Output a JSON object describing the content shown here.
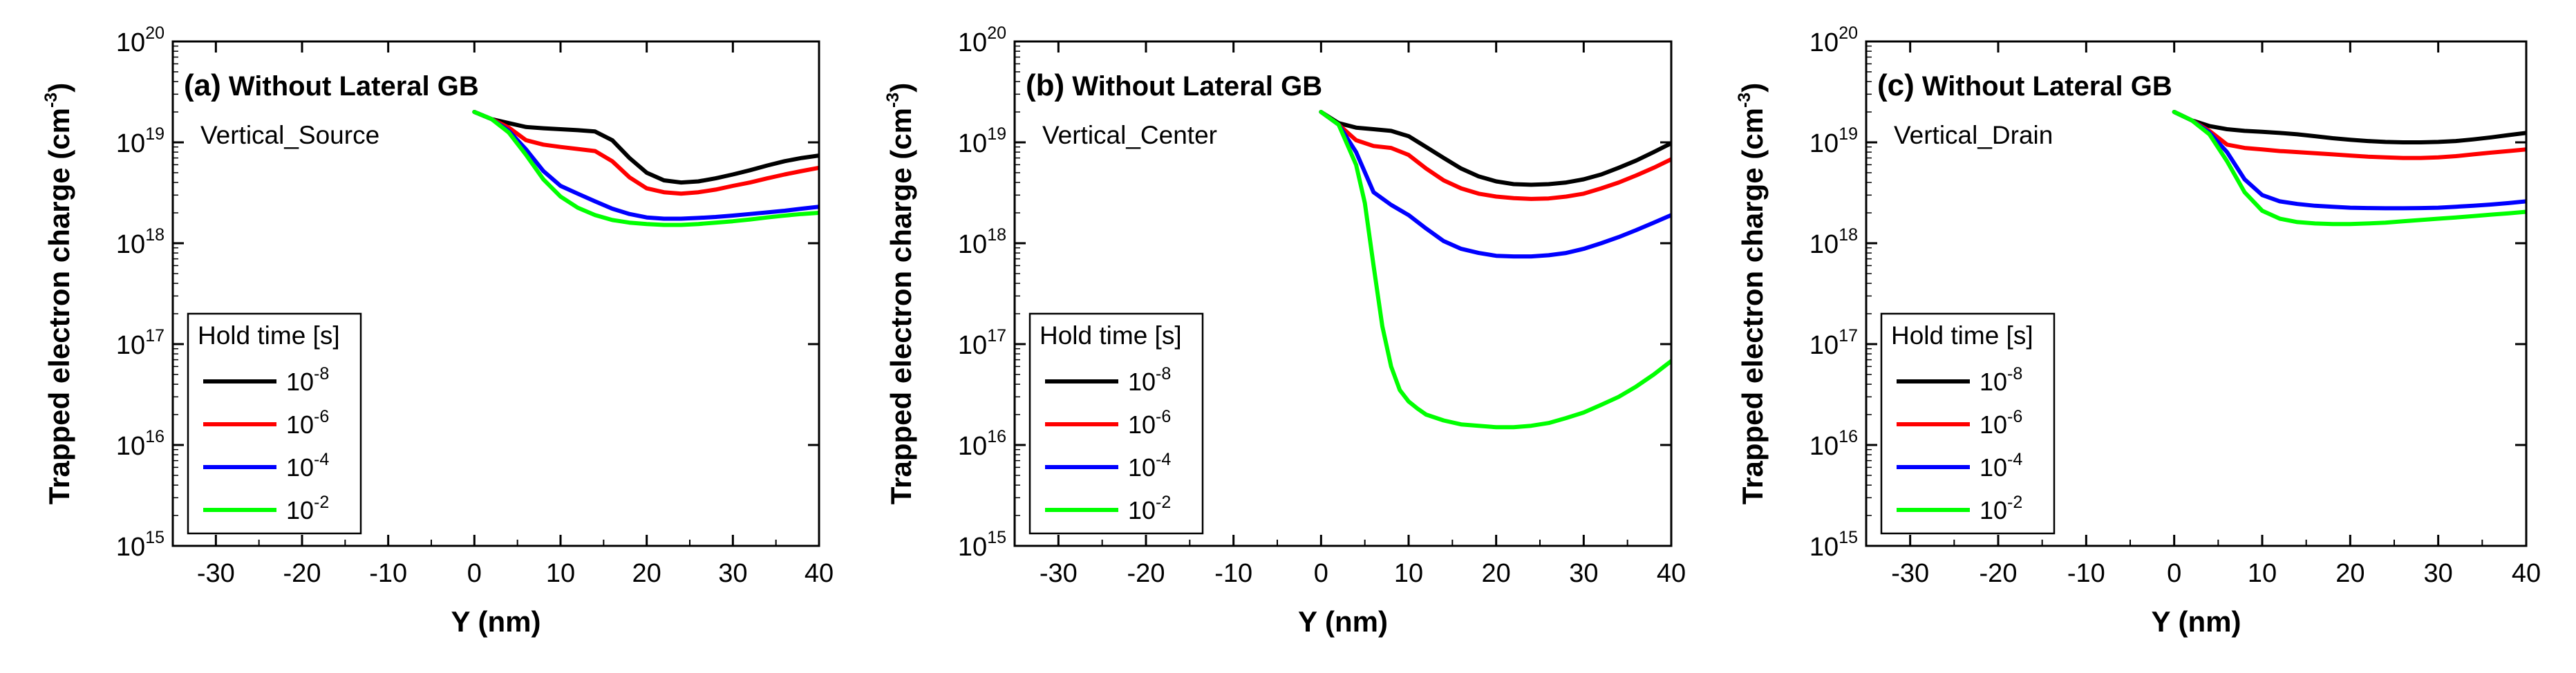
{
  "chart_data": [
    {
      "type": "line",
      "panel_label": "(a)",
      "title": "Without Lateral GB",
      "subtitle": "Vertical_Source",
      "xlabel": "Y (nm)",
      "ylabel_main": "Trapped electron charge (cm",
      "ylabel_exp": "-3",
      "ylabel_close": ")",
      "xlim": [
        -35,
        40
      ],
      "ylim_log10": [
        15,
        20
      ],
      "y_scale": "log",
      "x_ticks": [
        -30,
        -20,
        -10,
        0,
        10,
        20,
        30,
        40
      ],
      "y_ticks": [
        {
          "base": "10",
          "exp": "15"
        },
        {
          "base": "10",
          "exp": "16"
        },
        {
          "base": "10",
          "exp": "17"
        },
        {
          "base": "10",
          "exp": "18"
        },
        {
          "base": "10",
          "exp": "19"
        },
        {
          "base": "10",
          "exp": "20"
        }
      ],
      "legend": {
        "title": "Hold time [s]",
        "placement": "lower-left"
      },
      "series": [
        {
          "name_base": "10",
          "name_exp": "-8",
          "color": "#000000",
          "x": [
            0,
            2,
            4,
            6,
            8,
            10,
            12,
            14,
            16,
            18,
            20,
            22,
            24,
            26,
            28,
            30,
            32,
            34,
            36,
            38,
            40
          ],
          "y": [
            2e+19,
            1.7e+19,
            1.55e+19,
            1.42e+19,
            1.38e+19,
            1.35e+19,
            1.32e+19,
            1.28e+19,
            1.05e+19,
            7e+18,
            5e+18,
            4.2e+18,
            4e+18,
            4.1e+18,
            4.4e+18,
            4.8e+18,
            5.3e+18,
            5.9e+18,
            6.5e+18,
            7e+18,
            7.4e+18
          ]
        },
        {
          "name_base": "10",
          "name_exp": "-6",
          "color": "#ff0000",
          "x": [
            0,
            2,
            4,
            6,
            8,
            10,
            12,
            14,
            16,
            18,
            20,
            22,
            24,
            26,
            28,
            30,
            32,
            34,
            36,
            38,
            40
          ],
          "y": [
            2e+19,
            1.7e+19,
            1.4e+19,
            1.05e+19,
            9.5e+18,
            9e+18,
            8.6e+18,
            8.2e+18,
            6.5e+18,
            4.5e+18,
            3.5e+18,
            3.2e+18,
            3.1e+18,
            3.2e+18,
            3.4e+18,
            3.7e+18,
            4e+18,
            4.4e+18,
            4.8e+18,
            5.2e+18,
            5.6e+18
          ]
        },
        {
          "name_base": "10",
          "name_exp": "-4",
          "color": "#0000ff",
          "x": [
            0,
            2,
            4,
            6,
            8,
            10,
            12,
            14,
            16,
            18,
            20,
            22,
            24,
            26,
            28,
            30,
            32,
            34,
            36,
            38,
            40
          ],
          "y": [
            2e+19,
            1.7e+19,
            1.3e+19,
            8.5e+18,
            5.2e+18,
            3.7e+18,
            3.1e+18,
            2.6e+18,
            2.2e+18,
            1.95e+18,
            1.8e+18,
            1.75e+18,
            1.75e+18,
            1.78e+18,
            1.82e+18,
            1.88e+18,
            1.95e+18,
            2.02e+18,
            2.1e+18,
            2.2e+18,
            2.3e+18
          ]
        },
        {
          "name_base": "10",
          "name_exp": "-2",
          "color": "#00ff00",
          "x": [
            0,
            2,
            4,
            6,
            8,
            10,
            12,
            14,
            16,
            18,
            20,
            22,
            24,
            26,
            28,
            30,
            32,
            34,
            36,
            38,
            40
          ],
          "y": [
            2e+19,
            1.7e+19,
            1.25e+19,
            7.5e+18,
            4.3e+18,
            2.9e+18,
            2.25e+18,
            1.9e+18,
            1.7e+18,
            1.6e+18,
            1.55e+18,
            1.52e+18,
            1.52e+18,
            1.55e+18,
            1.6e+18,
            1.65e+18,
            1.72e+18,
            1.8e+18,
            1.88e+18,
            1.95e+18,
            2e+18
          ]
        }
      ]
    },
    {
      "type": "line",
      "panel_label": "(b)",
      "title": "Without Lateral GB",
      "subtitle": "Vertical_Center",
      "xlabel": "Y (nm)",
      "ylabel_main": "Trapped electron charge (cm",
      "ylabel_exp": "-3",
      "ylabel_close": ")",
      "xlim": [
        -35,
        40
      ],
      "ylim_log10": [
        15,
        20
      ],
      "y_scale": "log",
      "x_ticks": [
        -30,
        -20,
        -10,
        0,
        10,
        20,
        30,
        40
      ],
      "y_ticks": [
        {
          "base": "10",
          "exp": "15"
        },
        {
          "base": "10",
          "exp": "16"
        },
        {
          "base": "10",
          "exp": "17"
        },
        {
          "base": "10",
          "exp": "18"
        },
        {
          "base": "10",
          "exp": "19"
        },
        {
          "base": "10",
          "exp": "20"
        }
      ],
      "legend": {
        "title": "Hold time [s]",
        "placement": "lower-left"
      },
      "series": [
        {
          "name_base": "10",
          "name_exp": "-8",
          "color": "#000000",
          "x": [
            0,
            2,
            4,
            6,
            8,
            10,
            12,
            14,
            16,
            18,
            20,
            22,
            24,
            26,
            28,
            30,
            32,
            34,
            36,
            38,
            40
          ],
          "y": [
            2e+19,
            1.55e+19,
            1.4e+19,
            1.35e+19,
            1.3e+19,
            1.15e+19,
            9e+18,
            7e+18,
            5.5e+18,
            4.6e+18,
            4.1e+18,
            3.85e+18,
            3.8e+18,
            3.85e+18,
            4e+18,
            4.3e+18,
            4.8e+18,
            5.6e+18,
            6.6e+18,
            8e+18,
            9.8e+18
          ]
        },
        {
          "name_base": "10",
          "name_exp": "-6",
          "color": "#ff0000",
          "x": [
            0,
            2,
            4,
            6,
            8,
            10,
            12,
            14,
            16,
            18,
            20,
            22,
            24,
            26,
            28,
            30,
            32,
            34,
            36,
            38,
            40
          ],
          "y": [
            2e+19,
            1.5e+19,
            1.05e+19,
            9.2e+18,
            8.8e+18,
            7.5e+18,
            5.5e+18,
            4.2e+18,
            3.5e+18,
            3.1e+18,
            2.9e+18,
            2.8e+18,
            2.75e+18,
            2.78e+18,
            2.9e+18,
            3.1e+18,
            3.5e+18,
            4e+18,
            4.7e+18,
            5.6e+18,
            6.8e+18
          ]
        },
        {
          "name_base": "10",
          "name_exp": "-4",
          "color": "#0000ff",
          "x": [
            0,
            2,
            4,
            6,
            8,
            10,
            12,
            14,
            16,
            18,
            20,
            22,
            24,
            26,
            28,
            30,
            32,
            34,
            36,
            38,
            40
          ],
          "y": [
            2e+19,
            1.5e+19,
            8e+18,
            3.2e+18,
            2.4e+18,
            1.9e+18,
            1.4e+18,
            1.05e+18,
            8.8e+17,
            8e+17,
            7.5e+17,
            7.4e+17,
            7.4e+17,
            7.6e+17,
            8e+17,
            8.8e+17,
            1e+18,
            1.15e+18,
            1.35e+18,
            1.6e+18,
            1.9e+18
          ]
        },
        {
          "name_base": "10",
          "name_exp": "-2",
          "color": "#00ff00",
          "x": [
            0,
            2,
            4,
            5,
            6,
            7,
            8,
            9,
            10,
            11,
            12,
            14,
            16,
            18,
            20,
            22,
            24,
            26,
            28,
            30,
            32,
            34,
            36,
            38,
            40
          ],
          "y": [
            2e+19,
            1.5e+19,
            6e+18,
            2.5e+18,
            6e+17,
            1.5e+17,
            6e+16,
            3.5e+16,
            2.7e+16,
            2.3e+16,
            2e+16,
            1.75e+16,
            1.6e+16,
            1.55e+16,
            1.5e+16,
            1.5e+16,
            1.55e+16,
            1.65e+16,
            1.85e+16,
            2.1e+16,
            2.5e+16,
            3e+16,
            3.8e+16,
            5e+16,
            6.8e+16
          ]
        }
      ]
    },
    {
      "type": "line",
      "panel_label": "(c)",
      "title": "Without Lateral GB",
      "subtitle": "Vertical_Drain",
      "xlabel": "Y (nm)",
      "ylabel_main": "Trapped electron charge (cm",
      "ylabel_exp": "-3",
      "ylabel_close": ")",
      "xlim": [
        -35,
        40
      ],
      "ylim_log10": [
        15,
        20
      ],
      "y_scale": "log",
      "x_ticks": [
        -30,
        -20,
        -10,
        0,
        10,
        20,
        30,
        40
      ],
      "y_ticks": [
        {
          "base": "10",
          "exp": "15"
        },
        {
          "base": "10",
          "exp": "16"
        },
        {
          "base": "10",
          "exp": "17"
        },
        {
          "base": "10",
          "exp": "18"
        },
        {
          "base": "10",
          "exp": "19"
        },
        {
          "base": "10",
          "exp": "20"
        }
      ],
      "legend": {
        "title": "Hold time [s]",
        "placement": "lower-left"
      },
      "series": [
        {
          "name_base": "10",
          "name_exp": "-8",
          "color": "#000000",
          "x": [
            0,
            2,
            4,
            6,
            8,
            10,
            12,
            14,
            16,
            18,
            20,
            22,
            24,
            26,
            28,
            30,
            32,
            34,
            36,
            38,
            40
          ],
          "y": [
            2e+19,
            1.65e+19,
            1.45e+19,
            1.35e+19,
            1.3e+19,
            1.27e+19,
            1.24e+19,
            1.2e+19,
            1.15e+19,
            1.1e+19,
            1.06e+19,
            1.03e+19,
            1.01e+19,
            1e+19,
            1e+19,
            1.01e+19,
            1.03e+19,
            1.07e+19,
            1.12e+19,
            1.18e+19,
            1.24e+19
          ]
        },
        {
          "name_base": "10",
          "name_exp": "-6",
          "color": "#ff0000",
          "x": [
            0,
            2,
            4,
            6,
            8,
            10,
            12,
            14,
            16,
            18,
            20,
            22,
            24,
            26,
            28,
            30,
            32,
            34,
            36,
            38,
            40
          ],
          "y": [
            2e+19,
            1.65e+19,
            1.3e+19,
            9.5e+18,
            8.8e+18,
            8.5e+18,
            8.2e+18,
            8e+18,
            7.8e+18,
            7.6e+18,
            7.4e+18,
            7.2e+18,
            7.1e+18,
            7e+18,
            7e+18,
            7.1e+18,
            7.3e+18,
            7.6e+18,
            7.9e+18,
            8.2e+18,
            8.5e+18
          ]
        },
        {
          "name_base": "10",
          "name_exp": "-4",
          "color": "#0000ff",
          "x": [
            0,
            2,
            4,
            6,
            8,
            10,
            12,
            14,
            16,
            18,
            20,
            22,
            24,
            26,
            28,
            30,
            32,
            34,
            36,
            38,
            40
          ],
          "y": [
            2e+19,
            1.65e+19,
            1.25e+19,
            8e+18,
            4.3e+18,
            3e+18,
            2.6e+18,
            2.45e+18,
            2.35e+18,
            2.3e+18,
            2.25e+18,
            2.23e+18,
            2.22e+18,
            2.22e+18,
            2.23e+18,
            2.25e+18,
            2.3e+18,
            2.35e+18,
            2.42e+18,
            2.5e+18,
            2.6e+18
          ]
        },
        {
          "name_base": "10",
          "name_exp": "-2",
          "color": "#00ff00",
          "x": [
            0,
            2,
            4,
            6,
            8,
            10,
            12,
            14,
            16,
            18,
            20,
            22,
            24,
            26,
            28,
            30,
            32,
            34,
            36,
            38,
            40
          ],
          "y": [
            2e+19,
            1.65e+19,
            1.2e+19,
            6.5e+18,
            3.2e+18,
            2.1e+18,
            1.75e+18,
            1.62e+18,
            1.57e+18,
            1.55e+18,
            1.55e+18,
            1.57e+18,
            1.6e+18,
            1.65e+18,
            1.7e+18,
            1.75e+18,
            1.8e+18,
            1.86e+18,
            1.92e+18,
            1.98e+18,
            2.05e+18
          ]
        }
      ]
    }
  ]
}
